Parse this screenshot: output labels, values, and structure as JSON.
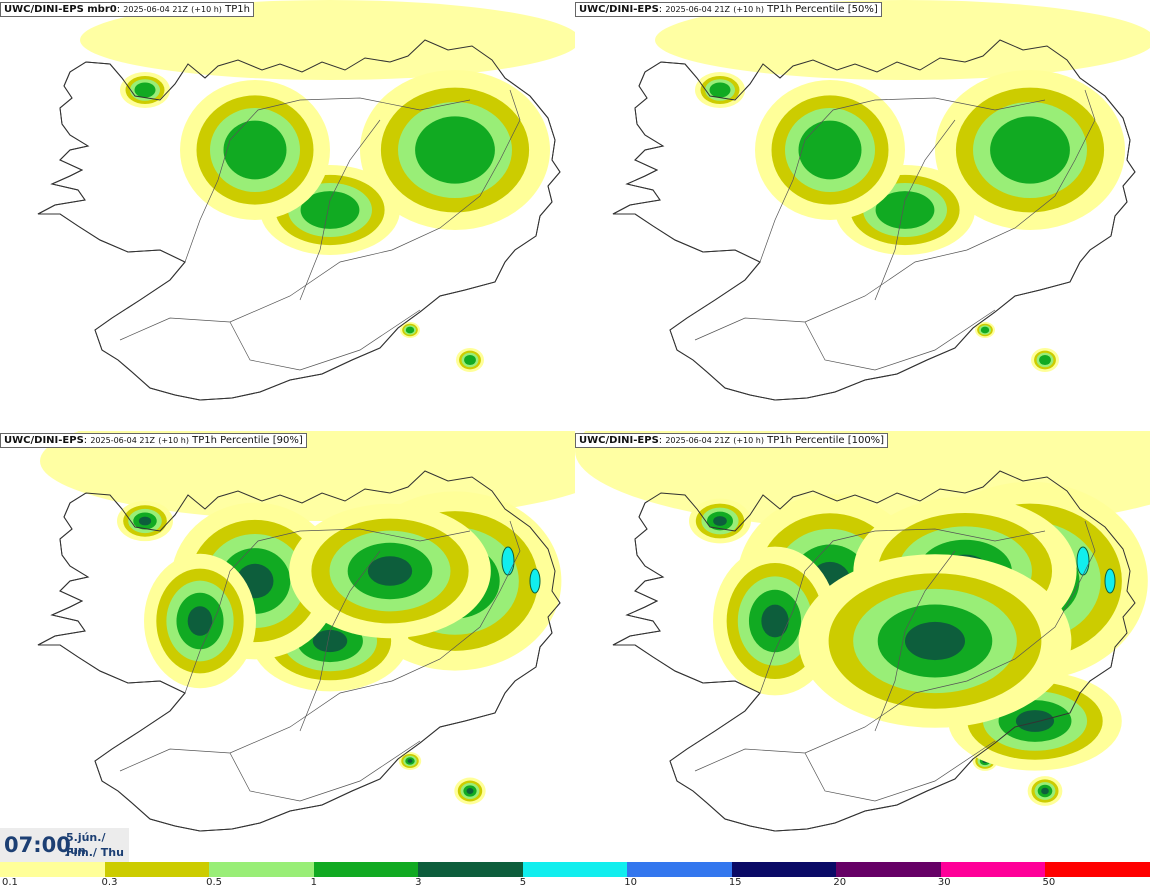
{
  "panels": [
    {
      "model": "UWC/DINI-EPS mbr0",
      "run": "2025-06-04 21Z",
      "lead": "(+10 h)",
      "variable": "TP1h"
    },
    {
      "model": "UWC/DINI-EPS",
      "run": "2025-06-04 21Z",
      "lead": "(+10 h)",
      "variable": "TP1h Percentile [50%]"
    },
    {
      "model": "UWC/DINI-EPS",
      "run": "2025-06-04 21Z",
      "lead": "(+10 h)",
      "variable": "TP1h Percentile [90%]"
    },
    {
      "model": "UWC/DINI-EPS",
      "run": "2025-06-04 21Z",
      "lead": "(+10 h)",
      "variable": "TP1h Percentile [100%]"
    }
  ],
  "valid_time": {
    "time": "07:00",
    "date_line1": "5.jún./ Jun",
    "date_line2": "Fim./ Thu"
  },
  "legend": {
    "labels": [
      "0.1",
      "0.3",
      "0.5",
      "1",
      "3",
      "5",
      "10",
      "15",
      "20",
      "30",
      "50"
    ],
    "colors": [
      "#ffff99",
      "#cccc00",
      "#99ee77",
      "#11aa22",
      "#0d5e3c",
      "#11eeee",
      "#3377ee",
      "#0a0a66",
      "#660066",
      "#ff0099",
      "#ff0000"
    ]
  },
  "map_colors": {
    "land": "#ffffff",
    "coast": "#333333",
    "roads": "#555555"
  }
}
